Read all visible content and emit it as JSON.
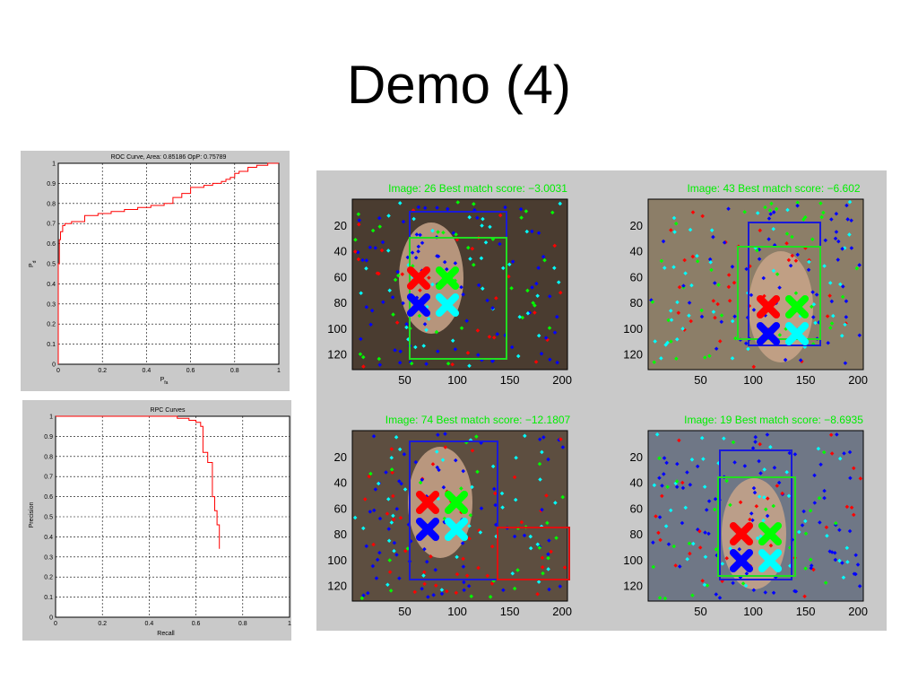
{
  "slide": {
    "title": "Demo (4)"
  },
  "colors": {
    "curve": "#ff0000",
    "score_text": "#00ee00",
    "panel_bg": "#c9c9c9",
    "marker_red": "#ff0000",
    "marker_green": "#00ff00",
    "marker_blue": "#0000ff",
    "marker_cyan": "#00ffff"
  },
  "chart_data": [
    {
      "type": "line",
      "title": "ROC Curve, Area: 0.85186 OpP: 0.75789",
      "xlabel_main": "P",
      "xlabel_sub": "fa",
      "ylabel_main": "P",
      "ylabel_sub": "d",
      "xlim": [
        0,
        1
      ],
      "ylim": [
        0,
        1
      ],
      "xticks": [
        "0",
        "0.2",
        "0.4",
        "0.6",
        "0.8",
        "1"
      ],
      "yticks": [
        "0",
        "0.1",
        "0.2",
        "0.3",
        "0.4",
        "0.5",
        "0.6",
        "0.7",
        "0.8",
        "0.9",
        "1"
      ],
      "grid": true,
      "series": [
        {
          "x": [
            0,
            0,
            0.005,
            0.005,
            0.01,
            0.01,
            0.02,
            0.02,
            0.03,
            0.03,
            0.06,
            0.06,
            0.12,
            0.12,
            0.18,
            0.18,
            0.24,
            0.24,
            0.3,
            0.3,
            0.36,
            0.36,
            0.42,
            0.42,
            0.48,
            0.48,
            0.52,
            0.52,
            0.56,
            0.56,
            0.6,
            0.6,
            0.66,
            0.66,
            0.7,
            0.7,
            0.74,
            0.74,
            0.76,
            0.76,
            0.78,
            0.78,
            0.8,
            0.8,
            0.82,
            0.82,
            0.86,
            0.86,
            0.9,
            0.9,
            0.95,
            0.95,
            1
          ],
          "y": [
            0,
            0.5,
            0.5,
            0.62,
            0.62,
            0.66,
            0.66,
            0.69,
            0.69,
            0.7,
            0.7,
            0.71,
            0.71,
            0.74,
            0.74,
            0.75,
            0.75,
            0.76,
            0.76,
            0.77,
            0.77,
            0.78,
            0.78,
            0.79,
            0.79,
            0.8,
            0.8,
            0.83,
            0.83,
            0.85,
            0.85,
            0.88,
            0.88,
            0.89,
            0.89,
            0.9,
            0.9,
            0.91,
            0.91,
            0.92,
            0.92,
            0.93,
            0.93,
            0.95,
            0.95,
            0.96,
            0.96,
            0.98,
            0.98,
            0.99,
            0.99,
            1,
            1
          ]
        }
      ]
    },
    {
      "type": "line",
      "title": "RPC Curves",
      "xlabel": "Recall",
      "ylabel": "Precision",
      "xlim": [
        0,
        1
      ],
      "ylim": [
        0,
        1
      ],
      "xticks": [
        "0",
        "0.2",
        "0.4",
        "0.6",
        "0.8",
        "1"
      ],
      "yticks": [
        "0",
        "0.1",
        "0.2",
        "0.3",
        "0.4",
        "0.5",
        "0.6",
        "0.7",
        "0.8",
        "0.9",
        "1"
      ],
      "grid": true,
      "series": [
        {
          "x": [
            0,
            0.52,
            0.52,
            0.57,
            0.57,
            0.6,
            0.6,
            0.62,
            0.62,
            0.63,
            0.63,
            0.65,
            0.65,
            0.67,
            0.67,
            0.68,
            0.68,
            0.69,
            0.69,
            0.7,
            0.7
          ],
          "y": [
            1,
            1,
            0.99,
            0.99,
            0.98,
            0.98,
            0.97,
            0.97,
            0.95,
            0.95,
            0.82,
            0.82,
            0.77,
            0.77,
            0.6,
            0.6,
            0.53,
            0.53,
            0.46,
            0.46,
            0.34
          ]
        }
      ]
    }
  ],
  "detections": {
    "xticks": [
      "50",
      "100",
      "150",
      "200"
    ],
    "yticks": [
      "20",
      "40",
      "60",
      "80",
      "100",
      "120"
    ],
    "frames": [
      {
        "title": "Image: 26 Best match score: −3.0031"
      },
      {
        "title": "Image: 43 Best match score: −6.602"
      },
      {
        "title": "Image: 74 Best match score: −12.1807"
      },
      {
        "title": "Image: 19 Best match score: −8.6935"
      }
    ]
  }
}
